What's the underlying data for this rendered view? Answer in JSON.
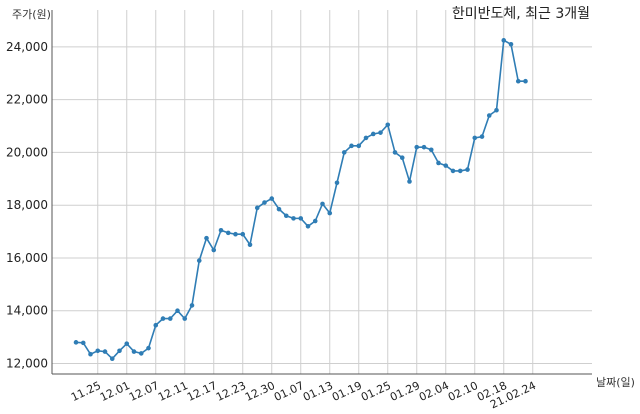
{
  "chart_data": {
    "type": "line",
    "title": "한미반도체, 최근 3개월",
    "ylabel": "주가(원)",
    "xlabel": "날짜(일)",
    "ylim": [
      11600,
      25400
    ],
    "yticks": [
      12000,
      14000,
      16000,
      18000,
      20000,
      22000,
      24000
    ],
    "ytick_labels": [
      "12,000",
      "14,000",
      "16,000",
      "18,000",
      "20,000",
      "22,000",
      "24,000"
    ],
    "xtick_labels": [
      "11.25",
      "12.01",
      "12.07",
      "12.11",
      "12.17",
      "12.23",
      "12.30",
      "01.07",
      "01.13",
      "01.19",
      "01.25",
      "01.29",
      "02.04",
      "02.10",
      "02.18",
      "21.02.24"
    ],
    "xtick_index": [
      3,
      7,
      11,
      15,
      19,
      23,
      27,
      31,
      35,
      39,
      43,
      47,
      51,
      55,
      59,
      63
    ],
    "grid": true,
    "color": "#2f7db5",
    "series": [
      {
        "values": [
          12800,
          12780,
          12350,
          12480,
          12450,
          12180,
          12480,
          12750,
          12450,
          12380,
          12580,
          13450,
          13700,
          13700,
          14000,
          13700,
          14200,
          15900,
          16750,
          16300,
          17050,
          16950,
          16900,
          16900,
          16500,
          17900,
          18100,
          18250,
          17850,
          17600,
          17500,
          17500,
          17200,
          17400,
          18050,
          17700,
          18850,
          20000,
          20250,
          20250,
          20550,
          20700,
          20750,
          21050,
          20000,
          19800,
          18900,
          20200,
          20200,
          20100,
          19600,
          19500,
          19300,
          19300,
          19350,
          20550,
          20600,
          21400,
          21600,
          24250,
          24100,
          22700,
          22700
        ]
      }
    ]
  }
}
